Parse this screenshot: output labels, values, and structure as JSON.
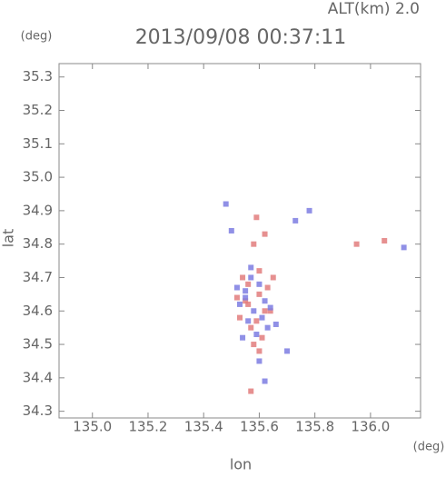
{
  "chart_data": {
    "type": "scatter",
    "title": "2013/09/08 00:37:11",
    "annotation": "ALT(km) 2.0",
    "y_unit": "(deg)",
    "x_unit": "(deg)",
    "xlabel": "lon",
    "ylabel": "lat",
    "xlim": [
      134.88,
      136.18
    ],
    "ylim": [
      34.28,
      35.34
    ],
    "xticks": [
      {
        "value": 135.0,
        "label": "135.0"
      },
      135.2,
      135.4,
      135.6,
      135.8,
      {
        "value": 136.0,
        "label": "136.0"
      }
    ],
    "yticks": [
      {
        "value": 34.3,
        "label": "34.3"
      },
      34.4,
      34.5,
      34.6,
      34.7,
      34.8,
      34.9,
      {
        "value": 35.0,
        "label": "35.0"
      },
      35.1,
      35.2,
      35.3
    ],
    "series": [
      {
        "color": "#e27c7c",
        "x": [
          135.59,
          135.58,
          135.56,
          135.55,
          135.6,
          135.62,
          135.53,
          135.57,
          135.61,
          135.58,
          135.54,
          135.6,
          135.63,
          135.56,
          135.59,
          135.52,
          135.65,
          135.6,
          136.05,
          135.95,
          135.57,
          135.62,
          135.64
        ],
        "y": [
          34.88,
          34.8,
          34.68,
          34.63,
          34.65,
          34.6,
          34.58,
          34.55,
          34.52,
          34.5,
          34.7,
          34.72,
          34.67,
          34.62,
          34.57,
          34.64,
          34.7,
          34.48,
          34.81,
          34.8,
          34.36,
          34.83,
          34.6
        ]
      },
      {
        "color": "#7c7ce2",
        "x": [
          135.57,
          135.55,
          135.6,
          135.62,
          135.53,
          135.58,
          135.56,
          135.61,
          135.63,
          135.59,
          135.54,
          135.52,
          135.7,
          135.73,
          135.78,
          136.12,
          135.62,
          135.48,
          135.5,
          135.64,
          135.57,
          135.6,
          135.55,
          135.66
        ],
        "y": [
          34.7,
          34.66,
          34.68,
          34.63,
          34.62,
          34.6,
          34.57,
          34.58,
          34.55,
          34.53,
          34.52,
          34.67,
          34.48,
          34.87,
          34.9,
          34.79,
          34.39,
          34.92,
          34.84,
          34.61,
          34.73,
          34.45,
          34.64,
          34.56
        ]
      }
    ]
  }
}
